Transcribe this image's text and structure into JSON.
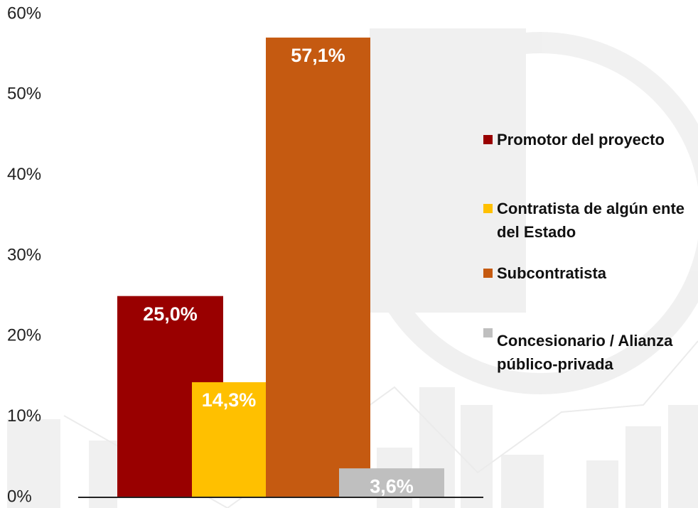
{
  "chart_data": {
    "type": "bar",
    "series": [
      {
        "name": "Promotor del proyecto",
        "color": "#990000",
        "values": [
          25.0
        ],
        "value_labels": [
          "25,0%"
        ]
      },
      {
        "name": "Contratista de algún ente del Estado",
        "color": "#ffc000",
        "values": [
          14.3
        ],
        "value_labels": [
          "14,3%"
        ]
      },
      {
        "name": "Subcontratista",
        "color": "#c55a11",
        "values": [
          57.1
        ],
        "value_labels": [
          "57,1%"
        ]
      },
      {
        "name": "Concesionario / Alianza público-privada",
        "color": "#bfbfbf",
        "values": [
          3.6
        ],
        "value_labels": [
          "3,6%"
        ]
      }
    ],
    "ylim": [
      0,
      60
    ],
    "yticks": [
      {
        "value": 0,
        "label": "0%"
      },
      {
        "value": 10,
        "label": "10%"
      },
      {
        "value": 20,
        "label": "20%"
      },
      {
        "value": 30,
        "label": "30%"
      },
      {
        "value": 40,
        "label": "40%"
      },
      {
        "value": 50,
        "label": "50%"
      },
      {
        "value": 60,
        "label": "60%"
      }
    ],
    "grid": false
  }
}
